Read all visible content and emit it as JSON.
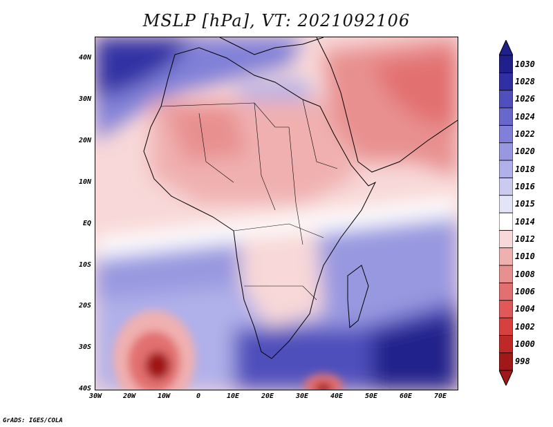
{
  "title": "MSLP [hPa], VT: 2021092106",
  "footer": "GrADS: IGES/COLA",
  "axes": {
    "y_ticks": [
      "40N",
      "30N",
      "20N",
      "10N",
      "EQ",
      "10S",
      "20S",
      "30S",
      "40S"
    ],
    "x_ticks": [
      "30W",
      "20W",
      "10W",
      "0",
      "10E",
      "20E",
      "30E",
      "40E",
      "50E",
      "60E",
      "70E"
    ]
  },
  "colorbar": {
    "labels": [
      "998",
      "1000",
      "1002",
      "1004",
      "1006",
      "1008",
      "1010",
      "1012",
      "1014",
      "1015",
      "1016",
      "1018",
      "1020",
      "1022",
      "1024",
      "1026",
      "1028",
      "1030"
    ],
    "colors": [
      "#a01818",
      "#c02828",
      "#d84040",
      "#e05858",
      "#e27070",
      "#e89090",
      "#f0b0b0",
      "#f8d8d8",
      "#ffffff",
      "#e4e4f8",
      "#cbcbf0",
      "#b0b0ea",
      "#9898e0",
      "#8080d8",
      "#6868cc",
      "#5050bc",
      "#3030a4",
      "#20208c"
    ]
  },
  "map": {
    "lon_range": [
      -30,
      75
    ],
    "lat_range": [
      -40,
      45
    ],
    "highs": [
      {
        "label": "",
        "lon": -22,
        "lat": 43,
        "value": 1028
      },
      {
        "label": "",
        "lon": 75,
        "lat": -38,
        "value": 1030
      }
    ],
    "lows": [
      {
        "label": "",
        "lon": -15,
        "lat": -34,
        "value": 998
      },
      {
        "label": "",
        "lon": 36,
        "lat": -39,
        "value": 1000
      }
    ]
  }
}
